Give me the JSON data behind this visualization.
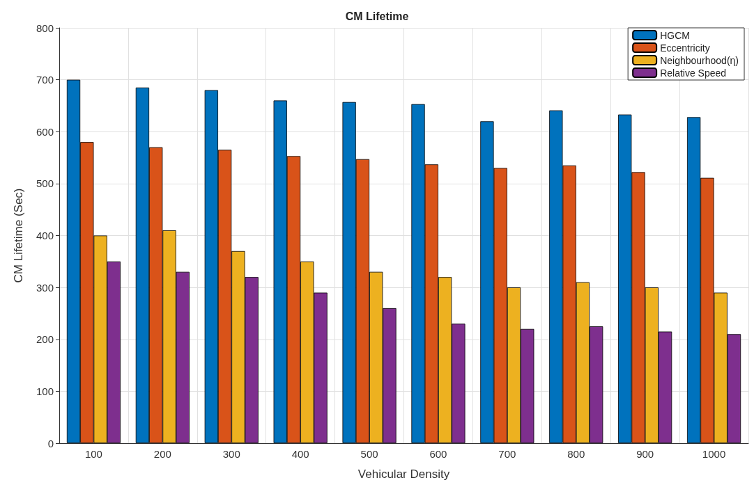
{
  "chart_data": {
    "type": "bar",
    "title": "CM Lifetime",
    "xlabel": "Vehicular Density",
    "ylabel": "CM Lifetime (Sec)",
    "categories": [
      "100",
      "200",
      "300",
      "400",
      "500",
      "600",
      "700",
      "800",
      "900",
      "1000"
    ],
    "series": [
      {
        "name": "HGCM",
        "color": "#0072bd",
        "values": [
          700,
          685,
          680,
          660,
          657,
          653,
          620,
          641,
          633,
          628
        ]
      },
      {
        "name": "Eccentricity",
        "color": "#d95319",
        "values": [
          580,
          570,
          565,
          553,
          547,
          537,
          530,
          535,
          522,
          511
        ]
      },
      {
        "name": "Neighbourhood(η)",
        "color": "#edb120",
        "values": [
          400,
          410,
          370,
          350,
          330,
          320,
          300,
          310,
          300,
          290
        ]
      },
      {
        "name": "Relative Speed",
        "color": "#7e2f8e",
        "values": [
          350,
          330,
          320,
          290,
          260,
          230,
          220,
          225,
          215,
          210
        ]
      }
    ],
    "ylim": [
      0,
      800
    ],
    "yticks": [
      0,
      100,
      200,
      300,
      400,
      500,
      600,
      700,
      800
    ],
    "grid": true,
    "legend": "top right"
  }
}
